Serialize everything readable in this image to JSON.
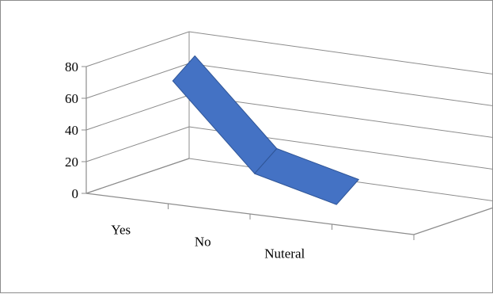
{
  "chart_data": {
    "type": "line",
    "style": "3d-line-ribbon",
    "categories": [
      "Yes",
      "No",
      "Nuteral"
    ],
    "series": [
      {
        "values": [
          70,
          18,
          5
        ]
      }
    ],
    "ylim": [
      0,
      80
    ],
    "yticks": [
      0,
      20,
      40,
      60,
      80
    ],
    "grid": true,
    "legend": "none",
    "colors": {
      "series": "#4472C4",
      "series_edge": "#2F5597",
      "axis": "#8c8c8c",
      "grid": "#8c8c8c"
    }
  }
}
